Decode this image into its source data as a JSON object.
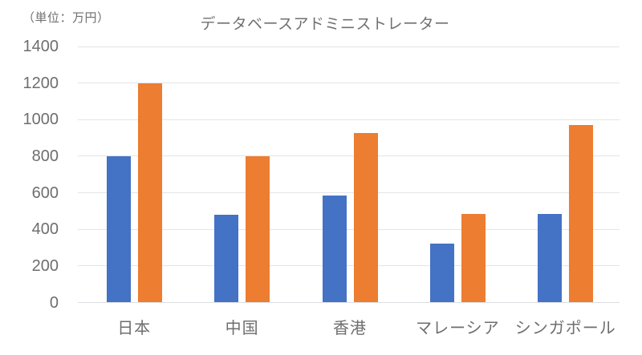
{
  "chart_data": {
    "type": "bar",
    "title": "データベースアドミニストレーター",
    "unit_label": "（単位：万円）",
    "categories": [
      "日本",
      "中国",
      "香港",
      "マレーシア",
      "シンガポール"
    ],
    "series": [
      {
        "color": "#4472C4",
        "values": [
          800,
          480,
          585,
          320,
          485
        ]
      },
      {
        "color": "#ED7D31",
        "values": [
          1200,
          800,
          925,
          485,
          970
        ]
      }
    ],
    "ylabel": "",
    "xlabel": "",
    "ylim": [
      0,
      1400
    ],
    "y_ticks": [
      0,
      200,
      400,
      600,
      800,
      1000,
      1200,
      1400
    ],
    "grid": true,
    "legend": false,
    "colors": {
      "grid": "#e2e4e7",
      "baseline": "#dcdee1",
      "axis_text": "#6e6e6e",
      "title_text": "#707070",
      "background": "#ffffff"
    }
  }
}
